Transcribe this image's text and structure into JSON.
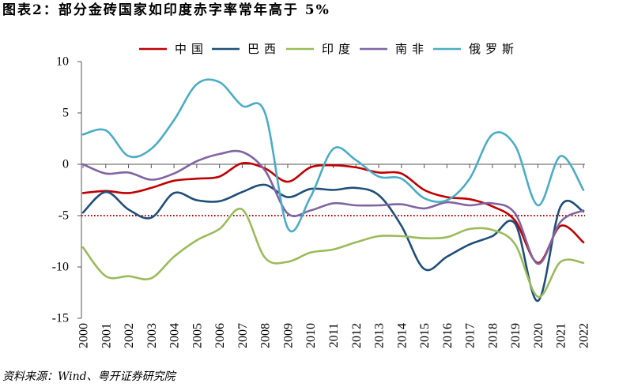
{
  "source": "资料来源：Wind、粤开证券研究院",
  "chart_data": {
    "type": "line",
    "title": "图表2：部分金砖国家如印度赤字率常年高于 5%",
    "xlabel": "",
    "ylabel": "",
    "ylim": [
      -15,
      10
    ],
    "yticks": [
      10,
      5,
      0,
      -5,
      -10,
      -15
    ],
    "categories": [
      "2000",
      "2001",
      "2002",
      "2003",
      "2004",
      "2005",
      "2006",
      "2007",
      "2008",
      "2009",
      "2010",
      "2011",
      "2012",
      "2013",
      "2014",
      "2015",
      "2016",
      "2017",
      "2018",
      "2019",
      "2020",
      "2021",
      "2022"
    ],
    "series": [
      {
        "name": "中国",
        "color": "#C00000",
        "values": [
          -2.8,
          -2.6,
          -2.8,
          -2.3,
          -1.6,
          -1.4,
          -1.2,
          0.1,
          -0.4,
          -1.7,
          -0.3,
          -0.1,
          -0.3,
          -0.8,
          -0.9,
          -2.5,
          -3.2,
          -3.4,
          -4.1,
          -5.5,
          -9.6,
          -6.0,
          -7.6
        ]
      },
      {
        "name": "巴西",
        "color": "#1F4E79",
        "values": [
          -4.7,
          -2.7,
          -4.4,
          -5.2,
          -2.8,
          -3.5,
          -3.6,
          -2.7,
          -2.0,
          -3.2,
          -2.4,
          -2.5,
          -2.3,
          -3.0,
          -6.0,
          -10.2,
          -9.0,
          -7.8,
          -7.0,
          -5.8,
          -13.3,
          -4.1,
          -4.6
        ]
      },
      {
        "name": "印度",
        "color": "#9BBB59",
        "values": [
          -8.1,
          -10.9,
          -10.9,
          -11.1,
          -9.0,
          -7.4,
          -6.3,
          -4.4,
          -9.1,
          -9.5,
          -8.6,
          -8.3,
          -7.6,
          -7.0,
          -7.0,
          -7.2,
          -7.1,
          -6.3,
          -6.4,
          -7.8,
          -12.9,
          -9.5,
          -9.6
        ]
      },
      {
        "name": "南非",
        "color": "#8064A2",
        "values": [
          0.0,
          -0.9,
          -0.8,
          -1.5,
          -0.9,
          0.3,
          1.0,
          1.2,
          -0.6,
          -4.8,
          -4.5,
          -3.8,
          -4.0,
          -4.0,
          -3.9,
          -4.3,
          -3.7,
          -4.0,
          -3.8,
          -4.8,
          -9.7,
          -5.6,
          -4.5
        ]
      },
      {
        "name": "俄罗斯",
        "color": "#4BACC6",
        "values": [
          2.9,
          3.3,
          0.8,
          1.5,
          4.3,
          7.8,
          8.0,
          5.7,
          5.0,
          -6.2,
          -3.2,
          1.5,
          0.4,
          -1.2,
          -1.4,
          -3.3,
          -3.5,
          -1.4,
          2.9,
          1.8,
          -4.0,
          0.8,
          -2.5
        ]
      }
    ],
    "reference_line": {
      "value": -5,
      "color": "#C00000"
    }
  }
}
